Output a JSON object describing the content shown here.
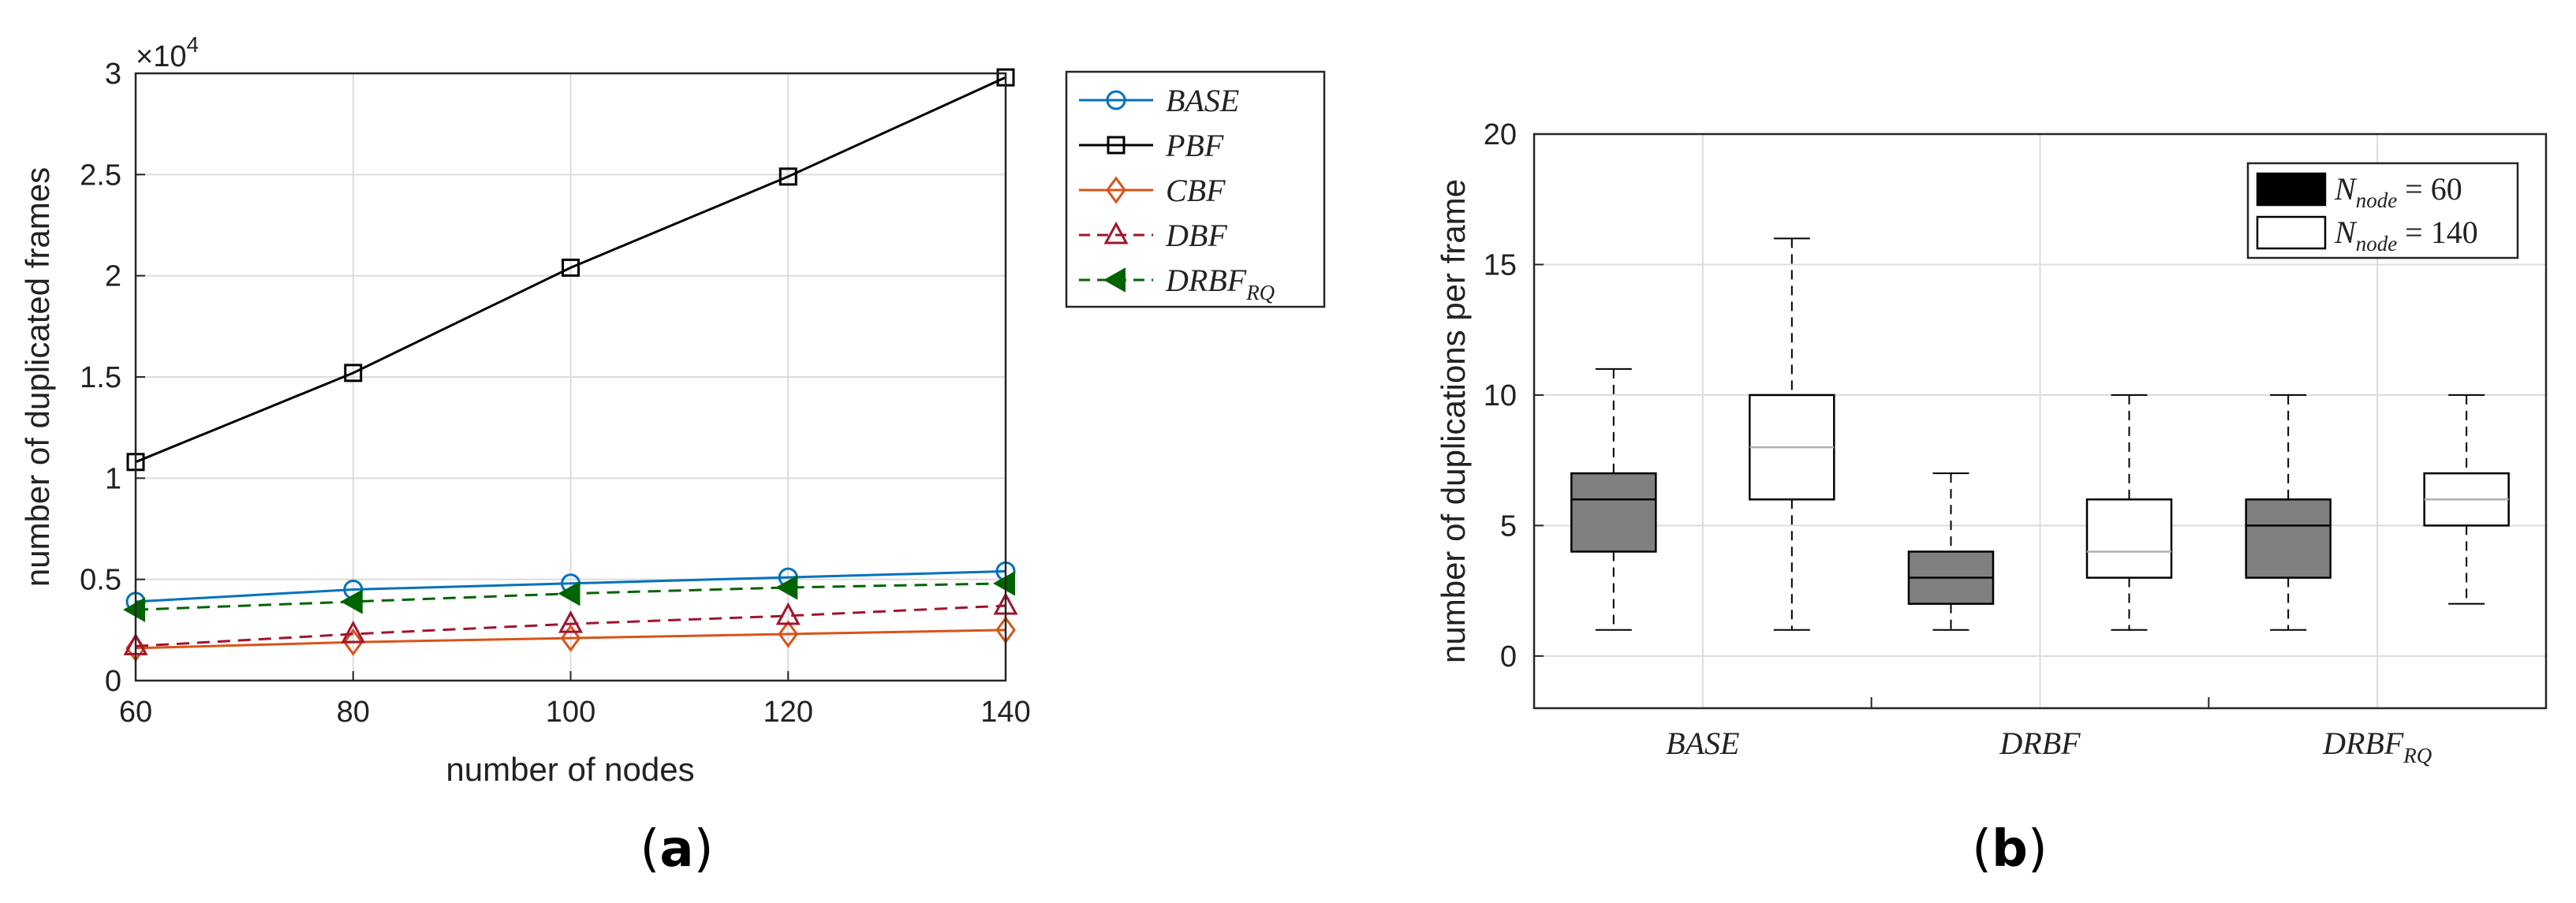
{
  "chart_data": [
    {
      "type": "line",
      "panel_label": "a",
      "xlabel": "number of nodes",
      "ylabel": "number of duplicated frames",
      "y_multiplier_label": "×10",
      "y_multiplier_exponent": "4",
      "xlim": [
        60,
        140
      ],
      "ylim": [
        0,
        3
      ],
      "x_ticks": [
        "60",
        "80",
        "100",
        "120",
        "140"
      ],
      "y_ticks": [
        "0",
        "0.5",
        "1",
        "1.5",
        "2",
        "2.5",
        "3"
      ],
      "grid": true,
      "legend_position": "top-right outside",
      "x": [
        60,
        80,
        100,
        120,
        140
      ],
      "series": [
        {
          "name": "BASE",
          "sub": "",
          "color": "#0072BD",
          "marker": "circle",
          "dash": "solid",
          "values": [
            0.39,
            0.45,
            0.48,
            0.51,
            0.54
          ]
        },
        {
          "name": "PBF",
          "sub": "",
          "color": "#000000",
          "marker": "square",
          "dash": "solid",
          "values": [
            1.08,
            1.52,
            2.04,
            2.49,
            2.98
          ]
        },
        {
          "name": "CBF",
          "sub": "",
          "color": "#D95319",
          "marker": "diamond",
          "dash": "solid",
          "values": [
            0.16,
            0.19,
            0.21,
            0.23,
            0.25
          ]
        },
        {
          "name": "DBF",
          "sub": "",
          "color": "#A2142F",
          "marker": "triangle",
          "dash": "dashed",
          "values": [
            0.17,
            0.23,
            0.28,
            0.32,
            0.37
          ]
        },
        {
          "name": "DRBF",
          "sub": "RQ",
          "color": "#006400",
          "marker": "triangle-left",
          "dash": "dashed",
          "values": [
            0.35,
            0.39,
            0.43,
            0.46,
            0.48
          ]
        }
      ]
    },
    {
      "type": "box",
      "panel_label": "b",
      "ylabel": "number of duplications per frame",
      "ylim": [
        -2,
        20
      ],
      "y_ticks": [
        "0",
        "5",
        "10",
        "15",
        "20"
      ],
      "grid": true,
      "legend_position": "top-right",
      "categories": [
        {
          "name": "BASE",
          "sub": ""
        },
        {
          "name": "DRBF",
          "sub": ""
        },
        {
          "name": "DRBF",
          "sub": "RQ"
        }
      ],
      "legend": [
        {
          "label_base": "N",
          "label_sub": "node",
          "label_rest": " = 60",
          "fill": "#000000"
        },
        {
          "label_base": "N",
          "label_sub": "node",
          "label_rest": " = 140",
          "fill": "#ffffff"
        }
      ],
      "series": [
        {
          "name": "N_node = 60",
          "fill": "#808080",
          "median_color": "#000000",
          "boxes": [
            {
              "min": 1,
              "q1": 4,
              "median": 6,
              "q3": 7,
              "max": 11
            },
            {
              "min": 1,
              "q1": 2,
              "median": 3,
              "q3": 4,
              "max": 7
            },
            {
              "min": 1,
              "q1": 3,
              "median": 5,
              "q3": 6,
              "max": 10
            }
          ]
        },
        {
          "name": "N_node = 140",
          "fill": "#ffffff",
          "median_color": "#b0b0b0",
          "boxes": [
            {
              "min": 1,
              "q1": 6,
              "median": 8,
              "q3": 10,
              "max": 16
            },
            {
              "min": 1,
              "q1": 3,
              "median": 4,
              "q3": 6,
              "max": 10
            },
            {
              "min": 2,
              "q1": 5,
              "median": 6,
              "q3": 7,
              "max": 10
            }
          ]
        }
      ]
    }
  ]
}
